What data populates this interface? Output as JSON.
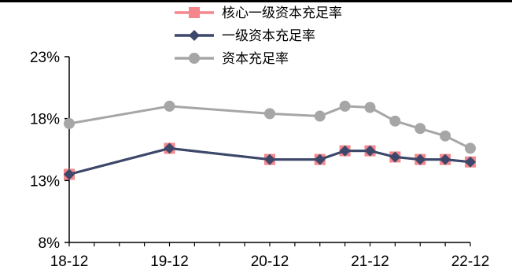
{
  "chart_data": {
    "type": "line",
    "title": "",
    "xlabel": "",
    "ylabel": "",
    "x_tick_labels": [
      "18-12",
      "19-12",
      "20-12",
      "21-12",
      "22-12"
    ],
    "y_tick_labels": [
      "8%",
      "13%",
      "18%",
      "23%"
    ],
    "ylim": [
      8,
      23
    ],
    "grid": false,
    "legend_placement": "top",
    "x_index_range": [
      0,
      16
    ],
    "series": [
      {
        "name": "核心一级资本充足率",
        "color": "#f4868c",
        "line_color": "#505a79",
        "marker": "square",
        "x": [
          0,
          4,
          8,
          10,
          11,
          12,
          13,
          14,
          15,
          16
        ],
        "values": [
          13.5,
          15.6,
          14.7,
          14.7,
          15.4,
          15.4,
          14.9,
          14.7,
          14.7,
          14.5
        ]
      },
      {
        "name": "一级资本充足率",
        "color": "#3d4769",
        "marker": "diamond",
        "x": [
          0,
          4,
          8,
          10,
          11,
          12,
          13,
          14,
          15,
          16
        ],
        "values": [
          13.5,
          15.6,
          14.7,
          14.7,
          15.4,
          15.4,
          14.9,
          14.7,
          14.7,
          14.5
        ]
      },
      {
        "name": "资本充足率",
        "color": "#a6a6a6",
        "marker": "circle",
        "x": [
          0,
          4,
          8,
          10,
          11,
          12,
          13,
          14,
          15,
          16
        ],
        "values": [
          17.6,
          19.0,
          18.4,
          18.2,
          19.0,
          18.9,
          17.8,
          17.2,
          16.6,
          15.6
        ]
      }
    ]
  }
}
